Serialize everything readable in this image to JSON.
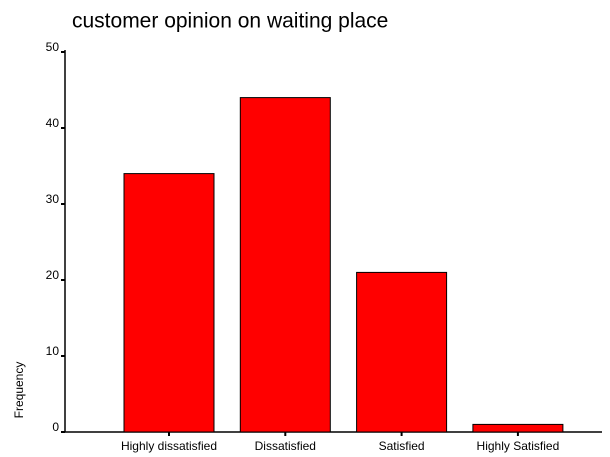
{
  "chart_data": {
    "type": "bar",
    "title": "customer opinion on waiting place",
    "y_label": "Frequency",
    "categories": [
      "Highly dissatisfied",
      "Dissatisfied",
      "Satisfied",
      "Highly Satisfied"
    ],
    "values": [
      34,
      44,
      21,
      1
    ],
    "color": "#ff0000",
    "ylim": [
      0,
      50
    ],
    "yticks": [
      0,
      10,
      20,
      30,
      40,
      50
    ],
    "grid": false
  }
}
